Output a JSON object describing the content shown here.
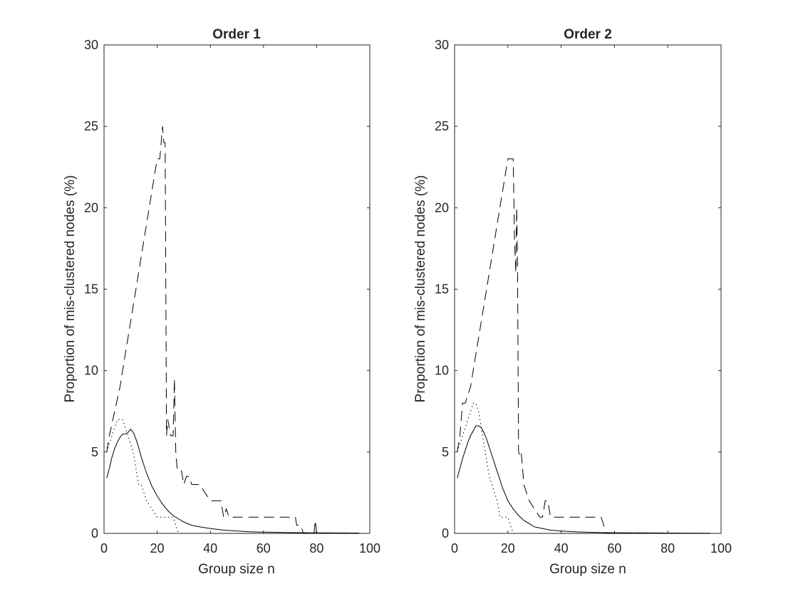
{
  "chart_data": [
    {
      "type": "line",
      "title": "Order 1",
      "xlabel": "Group size n",
      "ylabel": "Proportion of mis-clustered nodes (%)",
      "xlim": [
        0,
        100
      ],
      "ylim": [
        0,
        30
      ],
      "xticks": [
        0,
        20,
        40,
        60,
        80,
        100
      ],
      "yticks": [
        0,
        5,
        10,
        15,
        20,
        25,
        30
      ],
      "grid": false,
      "series": [
        {
          "style": "solid",
          "x": [
            1,
            2,
            3,
            4,
            5,
            6,
            7,
            8,
            9,
            10,
            11,
            12,
            13,
            14,
            15,
            16,
            17,
            18,
            19,
            20,
            22,
            24,
            26,
            28,
            30,
            33,
            36,
            40,
            45,
            50,
            55,
            60,
            70,
            80,
            96
          ],
          "y": [
            3.4,
            4.0,
            4.7,
            5.2,
            5.6,
            5.9,
            6.1,
            6.1,
            6.2,
            6.4,
            6.2,
            5.8,
            5.3,
            4.7,
            4.2,
            3.7,
            3.3,
            2.9,
            2.6,
            2.3,
            1.8,
            1.4,
            1.1,
            0.9,
            0.7,
            0.5,
            0.4,
            0.3,
            0.2,
            0.15,
            0.1,
            0.08,
            0.05,
            0.03,
            0.02
          ]
        },
        {
          "style": "dotted",
          "x": [
            1,
            2,
            3,
            4,
            5,
            6,
            7,
            8,
            9,
            10,
            11,
            12,
            13,
            14,
            15,
            16,
            18,
            20,
            21,
            22,
            24,
            26,
            27,
            28,
            30,
            40,
            60,
            80,
            96
          ],
          "y": [
            5.0,
            5.5,
            6.0,
            6.5,
            7.0,
            7.0,
            7.0,
            6.5,
            6.0,
            5.5,
            5.0,
            4.0,
            3.0,
            3.0,
            2.5,
            2.0,
            1.5,
            1.0,
            1.0,
            1.0,
            1.0,
            1.0,
            0.5,
            0,
            0,
            0,
            0,
            0,
            0
          ]
        },
        {
          "style": "dashed",
          "x": [
            1,
            2,
            4,
            6,
            8,
            10,
            12,
            14,
            16,
            18,
            20,
            21,
            22,
            22.5,
            23,
            23.5,
            24,
            25,
            26,
            26.5,
            27,
            27.5,
            28,
            29,
            30,
            31,
            32,
            33,
            34,
            36,
            38,
            40,
            44,
            45,
            46,
            47,
            50,
            55,
            60,
            65,
            70,
            72,
            72.5,
            74,
            75,
            78,
            79,
            79.5,
            80,
            80.5,
            85,
            90,
            96
          ],
          "y": [
            5.0,
            6.0,
            7.5,
            9.0,
            11.0,
            13.0,
            15.0,
            17.0,
            19.0,
            21.0,
            23.0,
            23.0,
            25.0,
            24.0,
            24.0,
            6.0,
            7.0,
            6.0,
            6.0,
            9.5,
            5.0,
            4.0,
            4.0,
            4.0,
            3.0,
            3.5,
            3.5,
            3.0,
            3.0,
            3.0,
            2.5,
            2.0,
            2.0,
            1.0,
            1.5,
            1.0,
            1.0,
            1.0,
            1.0,
            1.0,
            1.0,
            1.0,
            0.5,
            0.5,
            0,
            0,
            0,
            0.8,
            0,
            0,
            0,
            0,
            0
          ]
        }
      ]
    },
    {
      "type": "line",
      "title": "Order 2",
      "xlabel": "Group size n",
      "ylabel": "Proportion of mis-clustered nodes (%)",
      "xlim": [
        0,
        100
      ],
      "ylim": [
        0,
        30
      ],
      "xticks": [
        0,
        20,
        40,
        60,
        80,
        100
      ],
      "yticks": [
        0,
        5,
        10,
        15,
        20,
        25,
        30
      ],
      "grid": false,
      "series": [
        {
          "style": "solid",
          "x": [
            1,
            2,
            3,
            4,
            5,
            6,
            7,
            8,
            9,
            10,
            11,
            12,
            13,
            14,
            15,
            16,
            17,
            18,
            19,
            20,
            22,
            24,
            26,
            28,
            30,
            33,
            36,
            40,
            45,
            50,
            55,
            60,
            70,
            80,
            96
          ],
          "y": [
            3.4,
            4.0,
            4.6,
            5.1,
            5.6,
            6.0,
            6.3,
            6.6,
            6.6,
            6.5,
            6.2,
            5.8,
            5.3,
            4.8,
            4.3,
            3.8,
            3.3,
            2.8,
            2.4,
            2.0,
            1.5,
            1.1,
            0.8,
            0.6,
            0.4,
            0.3,
            0.2,
            0.15,
            0.1,
            0.07,
            0.05,
            0.04,
            0.03,
            0.02,
            0.01
          ]
        },
        {
          "style": "dotted",
          "x": [
            1,
            2,
            3,
            4,
            5,
            6,
            7,
            8,
            9,
            10,
            11,
            12,
            13,
            14,
            15,
            16,
            17,
            18,
            19,
            20,
            21,
            22,
            30,
            40,
            60,
            80,
            96
          ],
          "y": [
            5.0,
            5.5,
            6.0,
            6.5,
            7.0,
            7.5,
            8.0,
            8.0,
            7.5,
            6.5,
            5.5,
            4.5,
            3.5,
            3.0,
            2.5,
            2.0,
            1.0,
            1.0,
            1.0,
            1.0,
            0.5,
            0,
            0,
            0,
            0,
            0,
            0
          ]
        },
        {
          "style": "dashed",
          "x": [
            1,
            2,
            3,
            4,
            6,
            8,
            10,
            12,
            14,
            16,
            18,
            20,
            22,
            22.5,
            23,
            23.3,
            23.6,
            24,
            24.5,
            25,
            25.5,
            26,
            27,
            28,
            30,
            32,
            33,
            34,
            35,
            36,
            37,
            40,
            45,
            50,
            55,
            56,
            57,
            60,
            70,
            80,
            96
          ],
          "y": [
            5.0,
            6.0,
            8.0,
            8.0,
            9.0,
            11.0,
            13.0,
            15.0,
            17.0,
            19.0,
            21.0,
            23.0,
            23.0,
            18.0,
            16.0,
            20.0,
            17.0,
            5.0,
            4.8,
            5.0,
            4.0,
            3.0,
            2.5,
            2.0,
            1.5,
            1.0,
            1.0,
            2.0,
            2.0,
            1.0,
            1.0,
            1.0,
            1.0,
            1.0,
            1.0,
            0.5,
            0,
            0,
            0,
            0,
            0
          ]
        }
      ]
    }
  ]
}
